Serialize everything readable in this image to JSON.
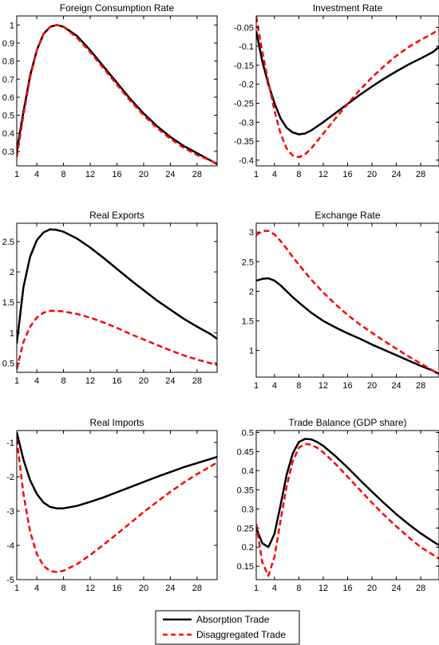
{
  "legend": {
    "entries": [
      {
        "label": "Absorption Trade",
        "color": "#000000",
        "style": "solid"
      },
      {
        "label": "Disaggregated Trade",
        "color": "#ff0000",
        "style": "dashed"
      }
    ],
    "placement": "bottom-center"
  },
  "chart_data": [
    {
      "type": "line",
      "title": "Foreign Consumption Rate",
      "xlabel": "",
      "ylabel": "",
      "xlim": [
        1,
        31
      ],
      "ylim": [
        0.22,
        1.05
      ],
      "xticks": [
        1,
        4,
        8,
        12,
        16,
        20,
        24,
        28
      ],
      "yticks": [
        0.3,
        0.4,
        0.5,
        0.6,
        0.7,
        0.8,
        0.9,
        1
      ],
      "ytick_labels": [
        "0.3",
        "0.4",
        "0.5",
        "0.6",
        "0.7",
        "0.8",
        "0.9",
        "1"
      ],
      "series": [
        {
          "name": "Absorption Trade",
          "color": "#000000",
          "dash": false,
          "x": [
            1,
            2,
            3,
            4,
            5,
            6,
            7,
            8,
            10,
            12,
            14,
            16,
            18,
            20,
            22,
            24,
            26,
            28,
            30,
            31
          ],
          "y": [
            0.3,
            0.52,
            0.72,
            0.86,
            0.95,
            0.99,
            1.0,
            0.99,
            0.94,
            0.86,
            0.77,
            0.68,
            0.59,
            0.51,
            0.44,
            0.38,
            0.33,
            0.29,
            0.25,
            0.23
          ]
        },
        {
          "name": "Disaggregated Trade",
          "color": "#ff0000",
          "dash": true,
          "x": [
            1,
            2,
            3,
            4,
            5,
            6,
            7,
            8,
            10,
            12,
            14,
            16,
            18,
            20,
            22,
            24,
            26,
            28,
            30,
            31
          ],
          "y": [
            0.27,
            0.5,
            0.71,
            0.86,
            0.95,
            0.99,
            1.0,
            0.99,
            0.93,
            0.85,
            0.76,
            0.67,
            0.58,
            0.5,
            0.43,
            0.37,
            0.32,
            0.28,
            0.25,
            0.23
          ]
        }
      ]
    },
    {
      "type": "line",
      "title": "Investment Rate",
      "xlabel": "",
      "ylabel": "",
      "xlim": [
        1,
        31
      ],
      "ylim": [
        -0.415,
        -0.02
      ],
      "xticks": [
        1,
        4,
        8,
        12,
        16,
        20,
        24,
        28
      ],
      "yticks": [
        -0.4,
        -0.35,
        -0.3,
        -0.25,
        -0.2,
        -0.15,
        -0.1,
        -0.05
      ],
      "ytick_labels": [
        "-0.4",
        "-0.35",
        "-0.3",
        "-0.25",
        "-0.2",
        "-0.15",
        "-0.1",
        "-0.05"
      ],
      "series": [
        {
          "name": "Absorption Trade",
          "color": "#000000",
          "dash": false,
          "x": [
            1,
            2,
            3,
            4,
            5,
            6,
            7,
            8,
            9,
            10,
            12,
            14,
            16,
            18,
            20,
            22,
            24,
            26,
            28,
            30,
            31
          ],
          "y": [
            -0.06,
            -0.14,
            -0.2,
            -0.25,
            -0.29,
            -0.315,
            -0.327,
            -0.332,
            -0.33,
            -0.322,
            -0.3,
            -0.276,
            -0.252,
            -0.228,
            -0.206,
            -0.185,
            -0.166,
            -0.148,
            -0.132,
            -0.115,
            -0.102
          ]
        },
        {
          "name": "Disaggregated Trade",
          "color": "#ff0000",
          "dash": true,
          "x": [
            1,
            2,
            3,
            4,
            5,
            6,
            7,
            8,
            9,
            10,
            12,
            14,
            16,
            18,
            20,
            22,
            24,
            26,
            28,
            30,
            31
          ],
          "y": [
            -0.022,
            -0.115,
            -0.195,
            -0.27,
            -0.33,
            -0.37,
            -0.388,
            -0.392,
            -0.385,
            -0.37,
            -0.33,
            -0.29,
            -0.252,
            -0.215,
            -0.182,
            -0.152,
            -0.125,
            -0.102,
            -0.083,
            -0.066,
            -0.055
          ]
        }
      ]
    },
    {
      "type": "line",
      "title": "Real Exports",
      "xlabel": "",
      "ylabel": "",
      "xlim": [
        1,
        31
      ],
      "ylim": [
        0.35,
        2.8
      ],
      "xticks": [
        1,
        4,
        8,
        12,
        16,
        20,
        24,
        28
      ],
      "yticks": [
        0.5,
        1,
        1.5,
        2,
        2.5
      ],
      "ytick_labels": [
        "0.5",
        "1",
        "1.5",
        "2",
        "2.5"
      ],
      "series": [
        {
          "name": "Absorption Trade",
          "color": "#000000",
          "dash": false,
          "x": [
            1,
            2,
            3,
            4,
            5,
            6,
            7,
            8,
            10,
            12,
            14,
            16,
            18,
            20,
            22,
            24,
            26,
            28,
            30,
            31
          ],
          "y": [
            0.82,
            1.75,
            2.25,
            2.52,
            2.65,
            2.7,
            2.69,
            2.66,
            2.55,
            2.4,
            2.23,
            2.05,
            1.87,
            1.7,
            1.53,
            1.38,
            1.23,
            1.1,
            0.98,
            0.9
          ]
        },
        {
          "name": "Disaggregated Trade",
          "color": "#ff0000",
          "dash": true,
          "x": [
            1,
            2,
            3,
            4,
            5,
            6,
            7,
            8,
            10,
            12,
            14,
            16,
            18,
            20,
            22,
            24,
            26,
            28,
            30,
            31
          ],
          "y": [
            0.4,
            0.85,
            1.1,
            1.25,
            1.33,
            1.36,
            1.36,
            1.35,
            1.31,
            1.25,
            1.17,
            1.08,
            0.98,
            0.89,
            0.8,
            0.71,
            0.63,
            0.56,
            0.5,
            0.47
          ]
        }
      ]
    },
    {
      "type": "line",
      "title": "Exchange Rate",
      "xlabel": "",
      "ylabel": "",
      "xlim": [
        1,
        31
      ],
      "ylim": [
        0.55,
        3.15
      ],
      "xticks": [
        1,
        4,
        8,
        12,
        16,
        20,
        24,
        28
      ],
      "yticks": [
        1,
        1.5,
        2,
        2.5,
        3
      ],
      "ytick_labels": [
        "1",
        "1.5",
        "2",
        "2.5",
        "3"
      ],
      "series": [
        {
          "name": "Absorption Trade",
          "color": "#000000",
          "dash": false,
          "x": [
            1,
            2,
            3,
            4,
            5,
            6,
            7,
            8,
            10,
            12,
            14,
            16,
            18,
            20,
            22,
            24,
            26,
            28,
            30,
            31
          ],
          "y": [
            2.18,
            2.21,
            2.22,
            2.18,
            2.1,
            2.0,
            1.9,
            1.81,
            1.64,
            1.5,
            1.39,
            1.29,
            1.2,
            1.1,
            1.01,
            0.92,
            0.83,
            0.74,
            0.66,
            0.6
          ]
        },
        {
          "name": "Disaggregated Trade",
          "color": "#ff0000",
          "dash": true,
          "x": [
            1,
            2,
            3,
            4,
            5,
            6,
            7,
            8,
            10,
            12,
            14,
            16,
            18,
            20,
            22,
            24,
            26,
            28,
            30,
            31
          ],
          "y": [
            2.95,
            3.02,
            3.02,
            2.96,
            2.85,
            2.72,
            2.58,
            2.45,
            2.2,
            1.98,
            1.78,
            1.6,
            1.44,
            1.3,
            1.16,
            1.03,
            0.9,
            0.78,
            0.66,
            0.6
          ]
        }
      ]
    },
    {
      "type": "line",
      "title": "Real Imports",
      "xlabel": "",
      "ylabel": "",
      "xlim": [
        1,
        31
      ],
      "ylim": [
        -5,
        -0.65
      ],
      "xticks": [
        1,
        4,
        8,
        12,
        16,
        20,
        24,
        28
      ],
      "yticks": [
        -5,
        -4,
        -3,
        -2,
        -1
      ],
      "ytick_labels": [
        "-5",
        "-4",
        "-3",
        "-2",
        "-1"
      ],
      "series": [
        {
          "name": "Absorption Trade",
          "color": "#000000",
          "dash": false,
          "x": [
            1,
            2,
            3,
            4,
            5,
            6,
            7,
            8,
            10,
            12,
            14,
            16,
            18,
            20,
            22,
            24,
            26,
            28,
            30,
            31
          ],
          "y": [
            -0.7,
            -1.5,
            -2.1,
            -2.5,
            -2.75,
            -2.88,
            -2.92,
            -2.92,
            -2.85,
            -2.73,
            -2.6,
            -2.45,
            -2.3,
            -2.15,
            -2.0,
            -1.86,
            -1.72,
            -1.6,
            -1.48,
            -1.42
          ]
        },
        {
          "name": "Disaggregated Trade",
          "color": "#ff0000",
          "dash": true,
          "x": [
            1,
            2,
            3,
            4,
            5,
            6,
            7,
            8,
            10,
            12,
            14,
            16,
            18,
            20,
            22,
            24,
            26,
            28,
            30,
            31
          ],
          "y": [
            -0.9,
            -2.5,
            -3.6,
            -4.25,
            -4.6,
            -4.75,
            -4.78,
            -4.74,
            -4.55,
            -4.28,
            -3.98,
            -3.67,
            -3.35,
            -3.03,
            -2.73,
            -2.44,
            -2.17,
            -1.92,
            -1.7,
            -1.58
          ]
        }
      ]
    },
    {
      "type": "line",
      "title": "Trade Balance (GDP share)",
      "xlabel": "",
      "ylabel": "",
      "xlim": [
        1,
        31
      ],
      "ylim": [
        0.115,
        0.505
      ],
      "xticks": [
        1,
        4,
        8,
        12,
        16,
        20,
        24,
        28
      ],
      "yticks": [
        0.15,
        0.2,
        0.25,
        0.3,
        0.35,
        0.4,
        0.45,
        0.5
      ],
      "ytick_labels": [
        "0.15",
        "0.2",
        "0.25",
        "0.3",
        "0.35",
        "0.4",
        "0.45",
        "0.5"
      ],
      "series": [
        {
          "name": "Absorption Trade",
          "color": "#000000",
          "dash": false,
          "x": [
            1,
            2,
            3,
            4,
            5,
            6,
            7,
            8,
            9,
            10,
            11,
            12,
            14,
            16,
            18,
            20,
            22,
            24,
            26,
            28,
            30,
            31
          ],
          "y": [
            0.25,
            0.21,
            0.2,
            0.235,
            0.31,
            0.39,
            0.445,
            0.475,
            0.483,
            0.482,
            0.475,
            0.465,
            0.438,
            0.408,
            0.376,
            0.345,
            0.315,
            0.286,
            0.26,
            0.236,
            0.215,
            0.205
          ]
        },
        {
          "name": "Disaggregated Trade",
          "color": "#ff0000",
          "dash": true,
          "x": [
            1,
            2,
            3,
            4,
            5,
            6,
            7,
            8,
            9,
            10,
            11,
            12,
            14,
            16,
            18,
            20,
            22,
            24,
            26,
            28,
            30,
            31
          ],
          "y": [
            0.26,
            0.16,
            0.125,
            0.175,
            0.27,
            0.36,
            0.425,
            0.46,
            0.47,
            0.468,
            0.46,
            0.448,
            0.418,
            0.384,
            0.35,
            0.316,
            0.284,
            0.254,
            0.226,
            0.2,
            0.18,
            0.17
          ]
        }
      ]
    }
  ]
}
